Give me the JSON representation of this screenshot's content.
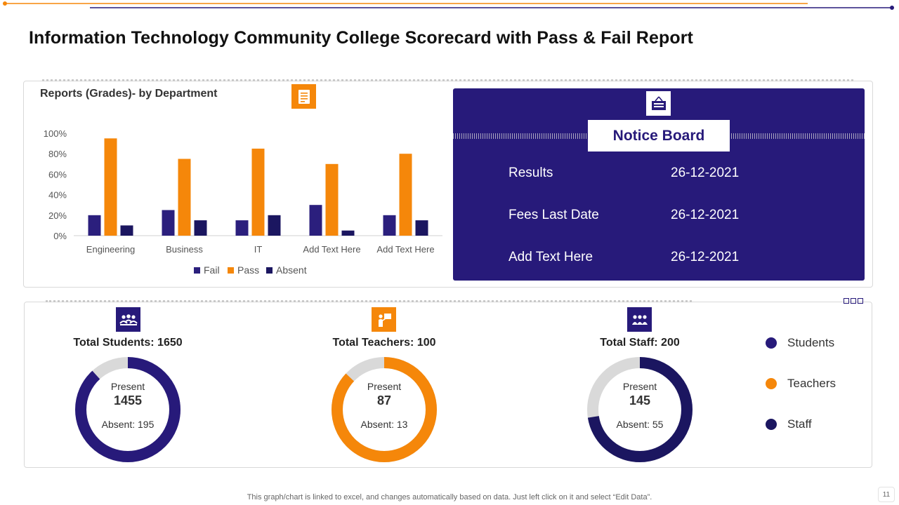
{
  "page_title": "Information Technology Community College Scorecard with Pass & Fail Report",
  "chart_data": {
    "type": "bar",
    "title": "Reports (Grades)- by Department",
    "categories": [
      "Engineering",
      "Business",
      "IT",
      "Add Text Here",
      "Add Text Here"
    ],
    "series": [
      {
        "name": "Fail",
        "color": "#2b1f7d",
        "values": [
          20,
          25,
          15,
          30,
          20
        ]
      },
      {
        "name": "Pass",
        "color": "#f5870a",
        "values": [
          95,
          75,
          85,
          70,
          80
        ]
      },
      {
        "name": "Absent",
        "color": "#1b1660",
        "values": [
          10,
          15,
          20,
          5,
          15
        ]
      }
    ],
    "ylim": [
      0,
      100
    ],
    "yticks": [
      "0%",
      "20%",
      "40%",
      "60%",
      "80%",
      "100%"
    ],
    "xlabel": "",
    "ylabel": "",
    "legend_position": "bottom"
  },
  "notice_board": {
    "title": "Notice Board",
    "rows": [
      {
        "label": "Results",
        "date": "26-12-2021"
      },
      {
        "label": "Fees Last Date",
        "date": "26-12-2021"
      },
      {
        "label": "Add Text Here",
        "date": "26-12-2021"
      }
    ]
  },
  "stats": [
    {
      "title": "Total Students:  1650",
      "present_label": "Present",
      "present_value": "1455",
      "absent_label": "Absent: 195",
      "present": 1455,
      "total": 1650,
      "color": "#271a7a",
      "icon": "students-icon"
    },
    {
      "title": "Total Teachers:  100",
      "present_label": "Present",
      "present_value": "87",
      "absent_label": "Absent: 13",
      "present": 87,
      "total": 100,
      "color": "#f5870a",
      "icon": "teacher-icon"
    },
    {
      "title": "Total Staff:  200",
      "present_label": "Present",
      "present_value": "145",
      "absent_label": "Absent: 55",
      "present": 145,
      "total": 200,
      "color": "#1b1660",
      "icon": "staff-icon"
    }
  ],
  "legend": [
    {
      "label": "Students",
      "color": "#271a7a"
    },
    {
      "label": "Teachers",
      "color": "#f5870a"
    },
    {
      "label": "Staff",
      "color": "#1b1660"
    }
  ],
  "colors": {
    "accent_orange": "#f5870a",
    "accent_navy": "#271a7a",
    "remainder_gray": "#d9d9d9"
  },
  "footer_note": "This graph/chart is linked to excel,  and changes automatically based on data. Just left click on it and select “Edit Data”.",
  "page_number": "11"
}
